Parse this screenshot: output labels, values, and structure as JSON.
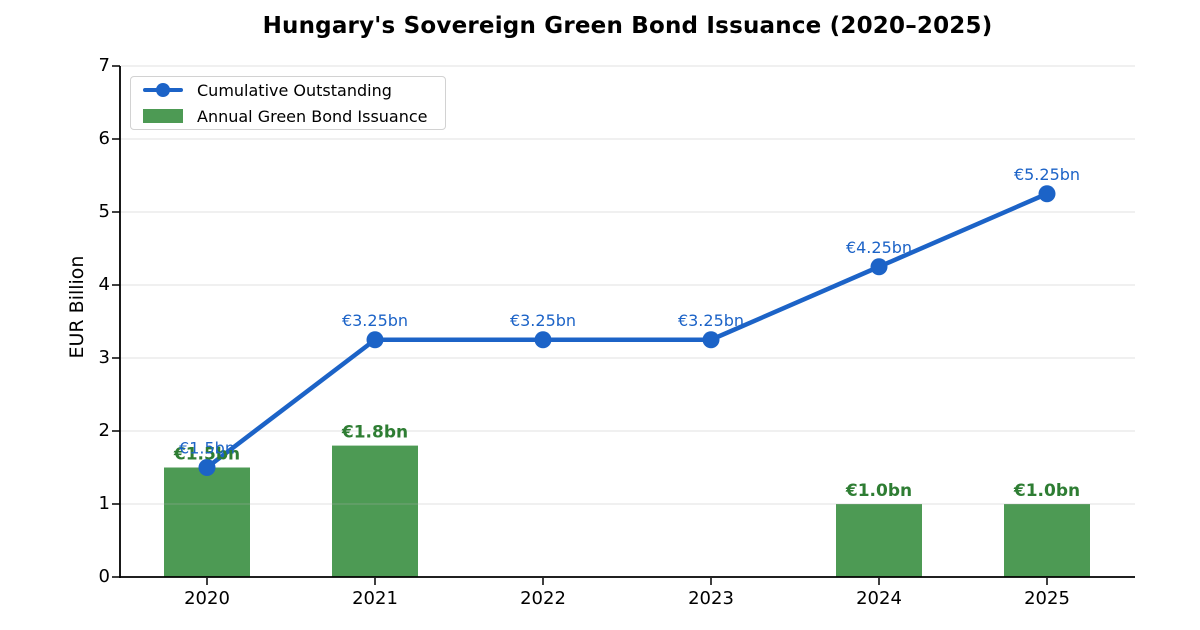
{
  "title": "Hungary's Sovereign Green Bond Issuance (2020–2025)",
  "y_axis_label": "EUR Billion",
  "colors": {
    "line": "#1c63c7",
    "bar": "#4d9a54",
    "bar_label": "#2e7d33",
    "grid": "#b0b0b0",
    "axis": "#000000"
  },
  "legend": {
    "items": [
      {
        "label": "Cumulative Outstanding",
        "type": "line"
      },
      {
        "label": "Annual Green Bond Issuance",
        "type": "bar"
      }
    ]
  },
  "chart_data": {
    "type": "line+bar",
    "title": "Hungary's Sovereign Green Bond Issuance (2020–2025)",
    "xlabel": "",
    "ylabel": "EUR Billion",
    "categories": [
      "2020",
      "2021",
      "2022",
      "2023",
      "2024",
      "2025"
    ],
    "series": [
      {
        "name": "Cumulative Outstanding",
        "type": "line",
        "values": [
          1.5,
          3.25,
          3.25,
          3.25,
          4.25,
          5.25
        ],
        "point_labels": [
          "€1.5bn",
          "€3.25bn",
          "€3.25bn",
          "€3.25bn",
          "€4.25bn",
          "€5.25bn"
        ]
      },
      {
        "name": "Annual Green Bond Issuance",
        "type": "bar",
        "values": [
          1.5,
          1.8,
          0,
          0,
          1.0,
          1.0
        ],
        "point_labels": [
          "€1.5bn",
          "€1.8bn",
          "",
          "",
          "€1.0bn",
          "€1.0bn"
        ]
      }
    ],
    "ylim": [
      0,
      7
    ],
    "yticks": [
      0,
      1,
      2,
      3,
      4,
      5,
      6,
      7
    ],
    "grid": true,
    "legend_position": "upper left"
  }
}
